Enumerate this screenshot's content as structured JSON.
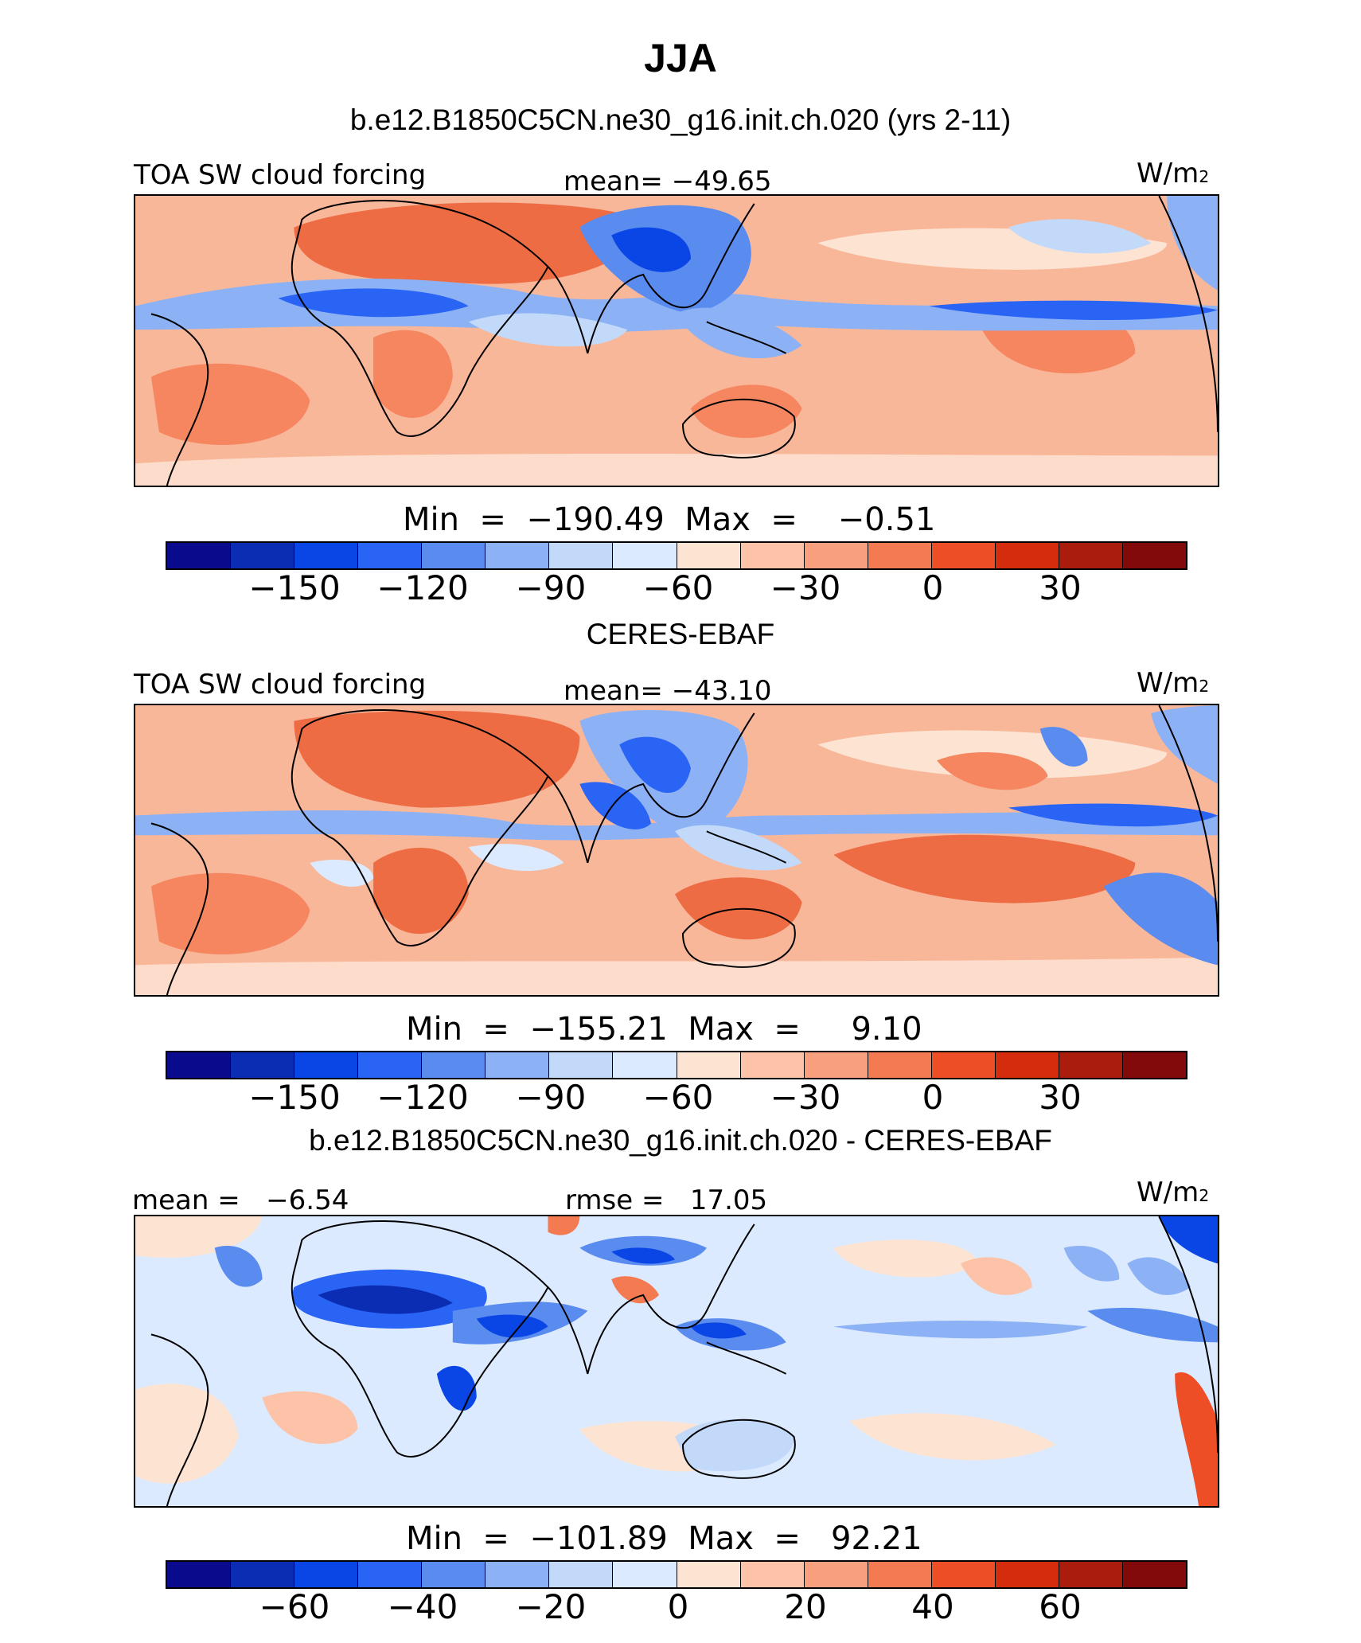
{
  "title": "JJA",
  "colorbar_colors": [
    "#0a0a8c",
    "#0a2db4",
    "#0a46e6",
    "#2a64f5",
    "#5a8cf0",
    "#8cb2f5",
    "#c2d9fa",
    "#dceaff",
    "#fde4d2",
    "#fcc3a8",
    "#f8a07e",
    "#f47a52",
    "#ee4e26",
    "#d42c0c",
    "#aa1c0c",
    "#820a0a"
  ],
  "panels": [
    {
      "subtitle": "b.e12.B1850C5CN.ne30_g16.init.ch.020 (yrs 2-11)",
      "left_label": "TOA SW cloud forcing",
      "center_label": "mean= −49.65",
      "units": "W/m",
      "units_sup": "2",
      "minmax": "Min  =  −190.49  Max  =    −0.51",
      "ticks": [
        "−150",
        "−120",
        "−90",
        "−60",
        "−30",
        "0",
        "30"
      ],
      "map_type": "model"
    },
    {
      "subtitle": "CERES-EBAF",
      "left_label": "TOA SW cloud forcing",
      "center_label": "mean= −43.10",
      "units": "W/m",
      "units_sup": "2",
      "minmax": "Min  =  −155.21  Max  =     9.10",
      "ticks": [
        "−150",
        "−120",
        "−90",
        "−60",
        "−30",
        "0",
        "30"
      ],
      "map_type": "obs"
    },
    {
      "subtitle": "b.e12.B1850C5CN.ne30_g16.init.ch.020 - CERES-EBAF",
      "left_label": "mean =   −6.54",
      "center_label": "rmse =   17.05",
      "units": "W/m",
      "units_sup": "2",
      "minmax": "Min  =  −101.89  Max  =   92.21",
      "ticks": [
        "−60",
        "−40",
        "−20",
        "0",
        "20",
        "40",
        "60"
      ],
      "map_type": "diff"
    }
  ]
}
